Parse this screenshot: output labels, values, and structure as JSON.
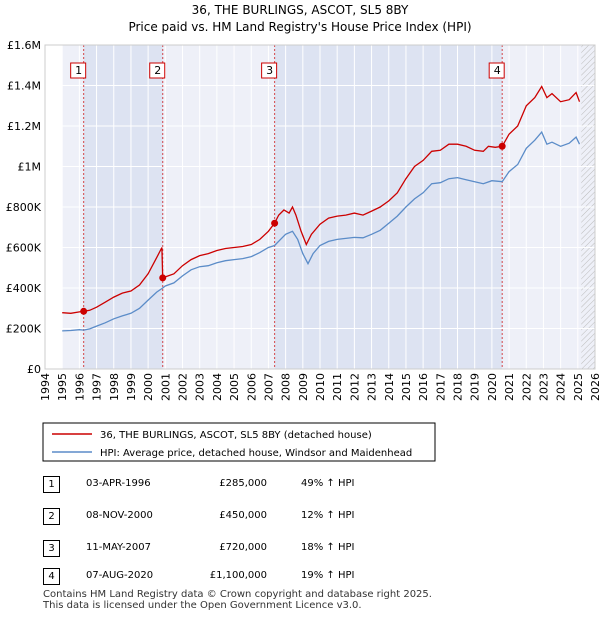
{
  "chart_data": {
    "type": "line",
    "title": "36, THE BURLINGS, ASCOT, SL5 8BY",
    "subtitle": "Price paid vs. HM Land Registry's House Price Index (HPI)",
    "xlim": [
      1994,
      2026
    ],
    "ylim": [
      0,
      1600000
    ],
    "y_ticks": [
      0,
      200000,
      400000,
      600000,
      800000,
      1000000,
      1200000,
      1400000,
      1600000
    ],
    "y_tick_labels": [
      "£0",
      "£200K",
      "£400K",
      "£600K",
      "£800K",
      "£1M",
      "£1.2M",
      "£1.4M",
      "£1.6M"
    ],
    "x_ticks": [
      1994,
      1995,
      1996,
      1997,
      1998,
      1999,
      2000,
      2001,
      2002,
      2003,
      2004,
      2005,
      2006,
      2007,
      2008,
      2009,
      2010,
      2011,
      2012,
      2013,
      2014,
      2015,
      2016,
      2017,
      2018,
      2019,
      2020,
      2021,
      2022,
      2023,
      2024,
      2025,
      2026
    ],
    "x_tick_labels": [
      "1994",
      "1995",
      "1996",
      "1997",
      "1998",
      "1999",
      "2000",
      "2001",
      "2002",
      "2003",
      "2004",
      "2005",
      "2006",
      "2007",
      "2008",
      "2009",
      "2010",
      "2011",
      "2012",
      "2013",
      "2014",
      "2015",
      "2016",
      "2017",
      "2018",
      "2019",
      "2020",
      "2021",
      "2022",
      "2023",
      "2024",
      "2025",
      "2026"
    ],
    "grid": true,
    "data_start": 1995.0,
    "data_end": 2025.2,
    "series": [
      {
        "name": "36, THE BURLINGS, ASCOT, SL5 8BY (detached house)",
        "color": "#cc0000",
        "points": [
          [
            1995.0,
            278000
          ],
          [
            1995.5,
            275000
          ],
          [
            1996.0,
            282000
          ],
          [
            1996.25,
            285000
          ],
          [
            1996.6,
            290000
          ],
          [
            1997.0,
            305000
          ],
          [
            1997.5,
            330000
          ],
          [
            1998.0,
            355000
          ],
          [
            1998.5,
            375000
          ],
          [
            1999.0,
            385000
          ],
          [
            1999.5,
            415000
          ],
          [
            2000.0,
            470000
          ],
          [
            2000.5,
            550000
          ],
          [
            2000.8,
            600000
          ],
          [
            2000.85,
            450000
          ],
          [
            2001.0,
            455000
          ],
          [
            2001.5,
            470000
          ],
          [
            2002.0,
            510000
          ],
          [
            2002.5,
            540000
          ],
          [
            2003.0,
            560000
          ],
          [
            2003.5,
            570000
          ],
          [
            2004.0,
            585000
          ],
          [
            2004.5,
            595000
          ],
          [
            2005.0,
            600000
          ],
          [
            2005.5,
            605000
          ],
          [
            2006.0,
            615000
          ],
          [
            2006.5,
            640000
          ],
          [
            2007.0,
            680000
          ],
          [
            2007.36,
            720000
          ],
          [
            2007.6,
            760000
          ],
          [
            2007.9,
            785000
          ],
          [
            2008.2,
            770000
          ],
          [
            2008.4,
            800000
          ],
          [
            2008.6,
            760000
          ],
          [
            2008.9,
            680000
          ],
          [
            2009.2,
            615000
          ],
          [
            2009.5,
            665000
          ],
          [
            2010.0,
            715000
          ],
          [
            2010.5,
            745000
          ],
          [
            2011.0,
            755000
          ],
          [
            2011.5,
            760000
          ],
          [
            2012.0,
            770000
          ],
          [
            2012.5,
            760000
          ],
          [
            2013.0,
            780000
          ],
          [
            2013.5,
            800000
          ],
          [
            2014.0,
            830000
          ],
          [
            2014.5,
            870000
          ],
          [
            2015.0,
            940000
          ],
          [
            2015.5,
            1000000
          ],
          [
            2016.0,
            1030000
          ],
          [
            2016.5,
            1075000
          ],
          [
            2017.0,
            1080000
          ],
          [
            2017.5,
            1110000
          ],
          [
            2018.0,
            1110000
          ],
          [
            2018.5,
            1100000
          ],
          [
            2019.0,
            1080000
          ],
          [
            2019.5,
            1075000
          ],
          [
            2019.8,
            1100000
          ],
          [
            2020.2,
            1095000
          ],
          [
            2020.6,
            1100000
          ],
          [
            2021.0,
            1160000
          ],
          [
            2021.5,
            1200000
          ],
          [
            2022.0,
            1300000
          ],
          [
            2022.5,
            1340000
          ],
          [
            2022.9,
            1395000
          ],
          [
            2023.2,
            1340000
          ],
          [
            2023.5,
            1360000
          ],
          [
            2024.0,
            1320000
          ],
          [
            2024.5,
            1330000
          ],
          [
            2024.9,
            1365000
          ],
          [
            2025.1,
            1320000
          ]
        ]
      },
      {
        "name": "HPI: Average price, detached house, Windsor and Maidenhead",
        "color": "#5b8cc8",
        "points": [
          [
            1995.0,
            188000
          ],
          [
            1995.5,
            190000
          ],
          [
            1996.0,
            194000
          ],
          [
            1996.25,
            192000
          ],
          [
            1996.6,
            198000
          ],
          [
            1997.0,
            212000
          ],
          [
            1997.5,
            228000
          ],
          [
            1998.0,
            248000
          ],
          [
            1998.5,
            262000
          ],
          [
            1999.0,
            275000
          ],
          [
            1999.5,
            300000
          ],
          [
            2000.0,
            340000
          ],
          [
            2000.5,
            380000
          ],
          [
            2000.85,
            400000
          ],
          [
            2001.0,
            410000
          ],
          [
            2001.5,
            425000
          ],
          [
            2002.0,
            460000
          ],
          [
            2002.5,
            490000
          ],
          [
            2003.0,
            505000
          ],
          [
            2003.5,
            510000
          ],
          [
            2004.0,
            525000
          ],
          [
            2004.5,
            535000
          ],
          [
            2005.0,
            540000
          ],
          [
            2005.5,
            545000
          ],
          [
            2006.0,
            555000
          ],
          [
            2006.5,
            575000
          ],
          [
            2007.0,
            600000
          ],
          [
            2007.36,
            610000
          ],
          [
            2007.7,
            640000
          ],
          [
            2008.0,
            665000
          ],
          [
            2008.4,
            680000
          ],
          [
            2008.7,
            640000
          ],
          [
            2009.0,
            570000
          ],
          [
            2009.3,
            520000
          ],
          [
            2009.6,
            570000
          ],
          [
            2010.0,
            610000
          ],
          [
            2010.5,
            630000
          ],
          [
            2011.0,
            640000
          ],
          [
            2011.5,
            645000
          ],
          [
            2012.0,
            650000
          ],
          [
            2012.5,
            648000
          ],
          [
            2013.0,
            665000
          ],
          [
            2013.5,
            685000
          ],
          [
            2014.0,
            720000
          ],
          [
            2014.5,
            755000
          ],
          [
            2015.0,
            800000
          ],
          [
            2015.5,
            840000
          ],
          [
            2016.0,
            870000
          ],
          [
            2016.5,
            915000
          ],
          [
            2017.0,
            920000
          ],
          [
            2017.5,
            940000
          ],
          [
            2018.0,
            945000
          ],
          [
            2018.5,
            935000
          ],
          [
            2019.0,
            925000
          ],
          [
            2019.5,
            915000
          ],
          [
            2020.0,
            930000
          ],
          [
            2020.6,
            925000
          ],
          [
            2021.0,
            975000
          ],
          [
            2021.5,
            1010000
          ],
          [
            2022.0,
            1090000
          ],
          [
            2022.5,
            1130000
          ],
          [
            2022.9,
            1170000
          ],
          [
            2023.2,
            1110000
          ],
          [
            2023.5,
            1120000
          ],
          [
            2024.0,
            1100000
          ],
          [
            2024.5,
            1115000
          ],
          [
            2024.9,
            1145000
          ],
          [
            2025.1,
            1110000
          ]
        ]
      }
    ],
    "sales": [
      {
        "label": "1",
        "year": 1996.25,
        "price": 285000,
        "date": "03-APR-1996",
        "price_label": "£285,000",
        "hpi": "49% ↑ HPI"
      },
      {
        "label": "2",
        "year": 2000.85,
        "price": 450000,
        "date": "08-NOV-2000",
        "price_label": "£450,000",
        "hpi": "12% ↑ HPI"
      },
      {
        "label": "3",
        "year": 2007.36,
        "price": 720000,
        "date": "11-MAY-2007",
        "price_label": "£720,000",
        "hpi": "18% ↑ HPI"
      },
      {
        "label": "4",
        "year": 2020.6,
        "price": 1100000,
        "date": "07-AUG-2020",
        "price_label": "£1,100,000",
        "hpi": "19% ↑ HPI"
      }
    ],
    "shaded_periods": [
      [
        1996.25,
        2000.85
      ],
      [
        2007.36,
        2020.6
      ]
    ],
    "legend": {
      "property": "36, THE BURLINGS, ASCOT, SL5 8BY (detached house)",
      "hpi": "HPI: Average price, detached house, Windsor and Maidenhead"
    }
  },
  "footer": {
    "line1": "Contains HM Land Registry data © Crown copyright and database right 2025.",
    "line2": "This data is licensed under the Open Government Licence v3.0."
  }
}
